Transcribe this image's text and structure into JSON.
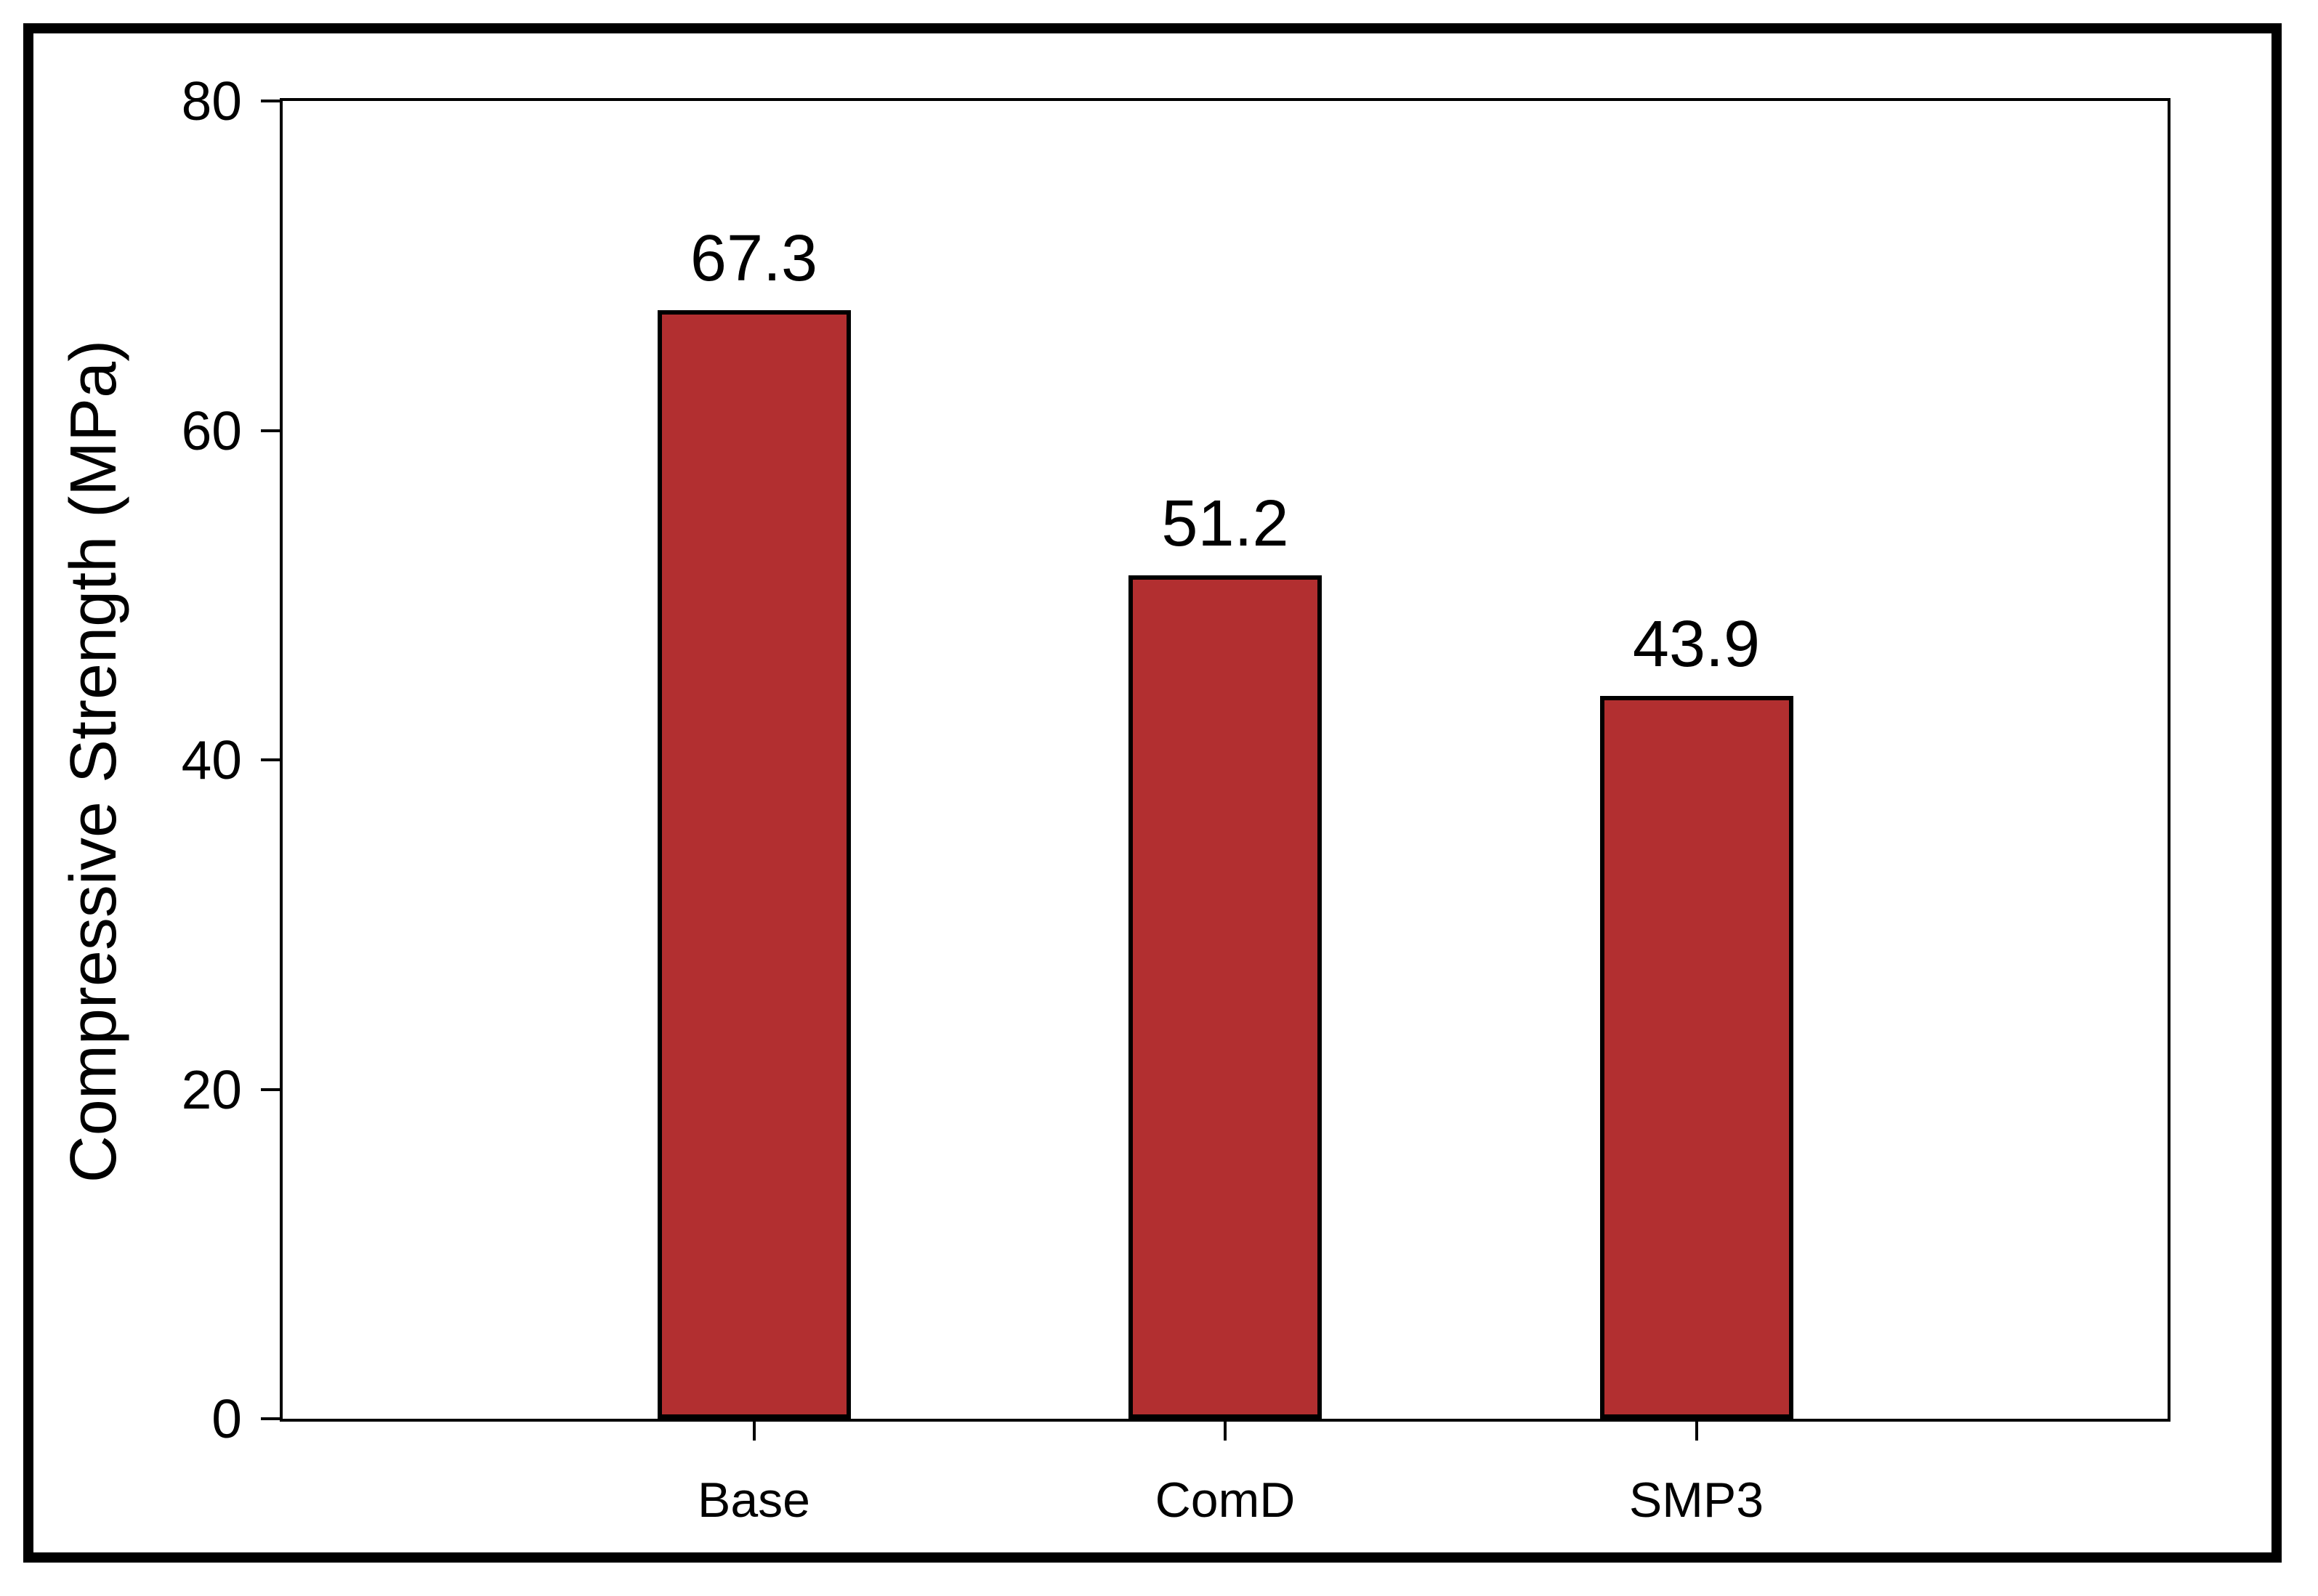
{
  "chart_data": {
    "type": "bar",
    "title": "",
    "xlabel": "",
    "ylabel": "Compressive Strength (MPa)",
    "categories": [
      "Base",
      "ComD",
      "SMP3"
    ],
    "values": [
      67.3,
      51.2,
      43.9
    ],
    "value_labels": [
      "67.3",
      "51.2",
      "43.9"
    ],
    "ylim": [
      0,
      80
    ],
    "yticks": [
      0,
      20,
      40,
      60,
      80
    ],
    "ytick_labels": [
      "0",
      "20",
      "40",
      "60",
      "80"
    ],
    "grid": false,
    "legend_position": "none",
    "bar_color": "#B22F30",
    "bar_border_color": "#000000",
    "frame_color": "#000000",
    "background_color": "#FFFFFF"
  }
}
